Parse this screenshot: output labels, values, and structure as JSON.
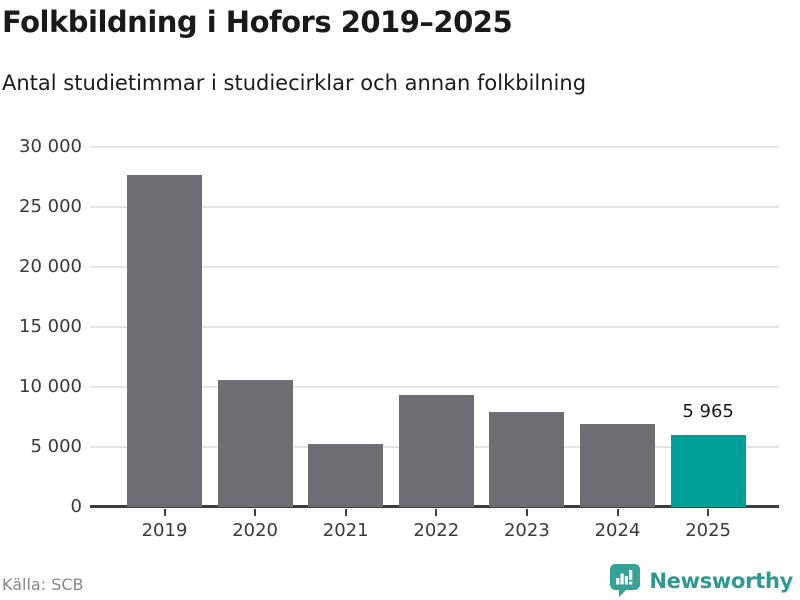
{
  "header": {
    "title": "Folkbildning i Hofors 2019–2025",
    "subtitle": "Antal studietimmar i studiecirklar och annan folkbilning"
  },
  "chart_data": {
    "type": "bar",
    "title": "Folkbildning i Hofors 2019–2025",
    "subtitle": "Antal studietimmar i studiecirklar och annan folkbilning",
    "categories": [
      "2019",
      "2020",
      "2021",
      "2022",
      "2023",
      "2024",
      "2025"
    ],
    "values": [
      27700,
      10600,
      5250,
      9300,
      7900,
      6900,
      5965
    ],
    "value_labels": [
      null,
      null,
      null,
      null,
      null,
      null,
      "5 965"
    ],
    "highlight_index": 6,
    "xlabel": "",
    "ylabel": "",
    "ylim": [
      0,
      30000
    ],
    "yticks": [
      0,
      5000,
      10000,
      15000,
      20000,
      25000,
      30000
    ],
    "ytick_labels": [
      "0",
      "5 000",
      "10 000",
      "15 000",
      "20 000",
      "25 000",
      "30 000"
    ],
    "grid": true,
    "legend": false,
    "bar_color": "#6d6d73",
    "highlight_color": "#00a099",
    "gridline_color": "#e4e4e4",
    "axis_color": "#3d3d3d"
  },
  "footer": {
    "source": "Källa: SCB",
    "brand": "Newsworthy",
    "brand_color": "#2e9a8f",
    "brand_icon": "newsworthy-bubble-barchart-icon"
  }
}
